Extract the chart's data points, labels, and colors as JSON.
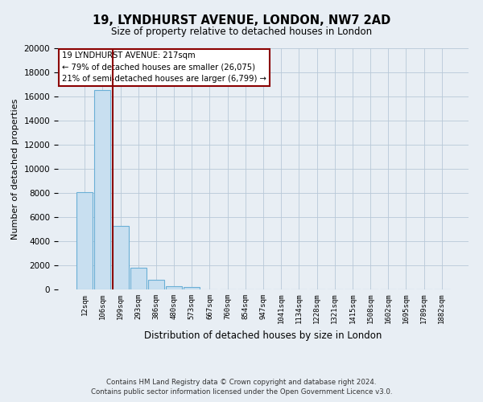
{
  "title": "19, LYNDHURST AVENUE, LONDON, NW7 2AD",
  "subtitle": "Size of property relative to detached houses in London",
  "xlabel": "Distribution of detached houses by size in London",
  "ylabel": "Number of detached properties",
  "footnote1": "Contains HM Land Registry data © Crown copyright and database right 2024.",
  "footnote2": "Contains public sector information licensed under the Open Government Licence v3.0.",
  "bar_labels": [
    "12sqm",
    "106sqm",
    "199sqm",
    "293sqm",
    "386sqm",
    "480sqm",
    "573sqm",
    "667sqm",
    "760sqm",
    "854sqm",
    "947sqm",
    "1041sqm",
    "1134sqm",
    "1228sqm",
    "1321sqm",
    "1415sqm",
    "1508sqm",
    "1602sqm",
    "1695sqm",
    "1789sqm",
    "1882sqm"
  ],
  "bar_values": [
    8100,
    16500,
    5300,
    1800,
    800,
    300,
    200,
    0,
    0,
    0,
    0,
    0,
    0,
    0,
    0,
    0,
    0,
    0,
    0,
    0,
    0
  ],
  "bar_color": "#c8dff0",
  "bar_edge_color": "#6aafd6",
  "ylim": [
    0,
    20000
  ],
  "yticks": [
    0,
    2000,
    4000,
    6000,
    8000,
    10000,
    12000,
    14000,
    16000,
    18000,
    20000
  ],
  "vline_color": "#8b0000",
  "box_edge_color": "#8b0000",
  "background_color": "#e8eef4",
  "grid_color": "#b8c8d8",
  "ann_line1": "19 LYNDHURST AVENUE: 217sqm",
  "ann_line2": "← 79% of detached houses are smaller (26,075)",
  "ann_line3": "21% of semi-detached houses are larger (6,799) →"
}
